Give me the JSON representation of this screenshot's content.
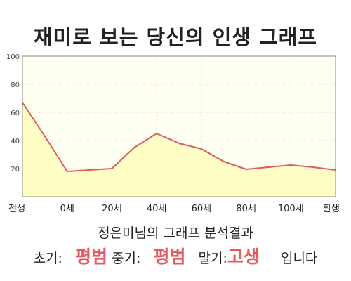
{
  "title": "재미로 보는 당신의 인생 그래프",
  "summary": "정은미님의 그래프 분석결과",
  "verdict": {
    "early_label": "초기:",
    "early_value": "평범",
    "mid_label": "중기:",
    "mid_value": "평범",
    "late_label": "말기:",
    "late_value": "고생",
    "suffix": "입니다"
  },
  "colors": {
    "line": "#e05a60",
    "fill": "#ffffc0",
    "plot_bg": "#fffff2",
    "grid": "#e8e8c8",
    "highlight": "#e8585e"
  },
  "chart_data": {
    "type": "area",
    "title": "재미로 보는 당신의 인생 그래프",
    "xlabel": "",
    "ylabel": "",
    "x_tick_labels": [
      "전생",
      "0세",
      "20세",
      "40세",
      "60세",
      "80세",
      "100세",
      "환생"
    ],
    "y_ticks": [
      20,
      40,
      60,
      80,
      100
    ],
    "ylim": [
      0,
      100
    ],
    "grid": true,
    "series": [
      {
        "x": [
          "전생",
          "",
          "0세",
          "",
          "20세",
          "",
          "40세",
          "",
          "60세",
          "",
          "80세",
          "",
          "100세",
          "",
          "환생"
        ],
        "values": [
          67,
          43,
          18,
          19,
          20,
          35,
          45,
          38,
          34,
          25,
          19.5,
          21,
          22.5,
          21,
          19
        ]
      }
    ]
  }
}
